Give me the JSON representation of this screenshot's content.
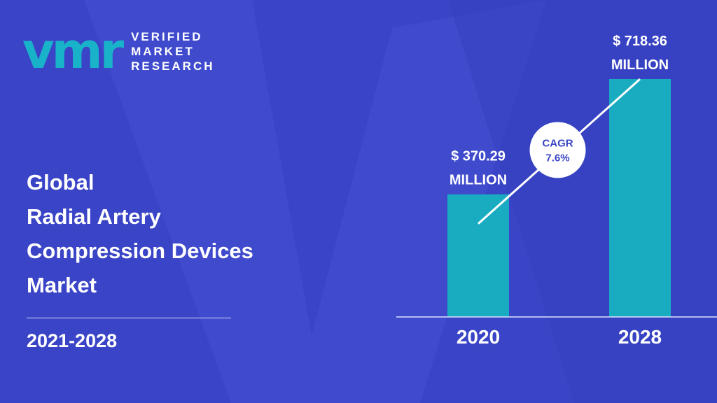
{
  "brand": {
    "mark": "vmr",
    "line1": "VERIFIED",
    "line2": "MARKET",
    "line3": "RESEARCH",
    "mark_color": "#19b3c9"
  },
  "title_lines": [
    "Global",
    "Radial Artery",
    "Compression Devices",
    "Market"
  ],
  "period": "2021-2028",
  "colors": {
    "background": "#3a44c6",
    "background_shape": "#3f4bcf",
    "bar": "#19acc1",
    "text": "#ffffff",
    "cagr_text": "#3a44c6"
  },
  "chart_data": {
    "type": "bar",
    "categories": [
      "2020",
      "2028"
    ],
    "values": [
      370.29,
      718.36
    ],
    "value_labels": [
      [
        "$ 370.29",
        "MILLION"
      ],
      [
        "$ 718.36",
        "MILLION"
      ]
    ],
    "cagr": {
      "label": "CAGR",
      "value": "7.6%"
    },
    "title": "",
    "xlabel": "",
    "ylabel": "",
    "ylim": [
      0,
      718.36
    ],
    "grid": false,
    "legend": "none"
  }
}
